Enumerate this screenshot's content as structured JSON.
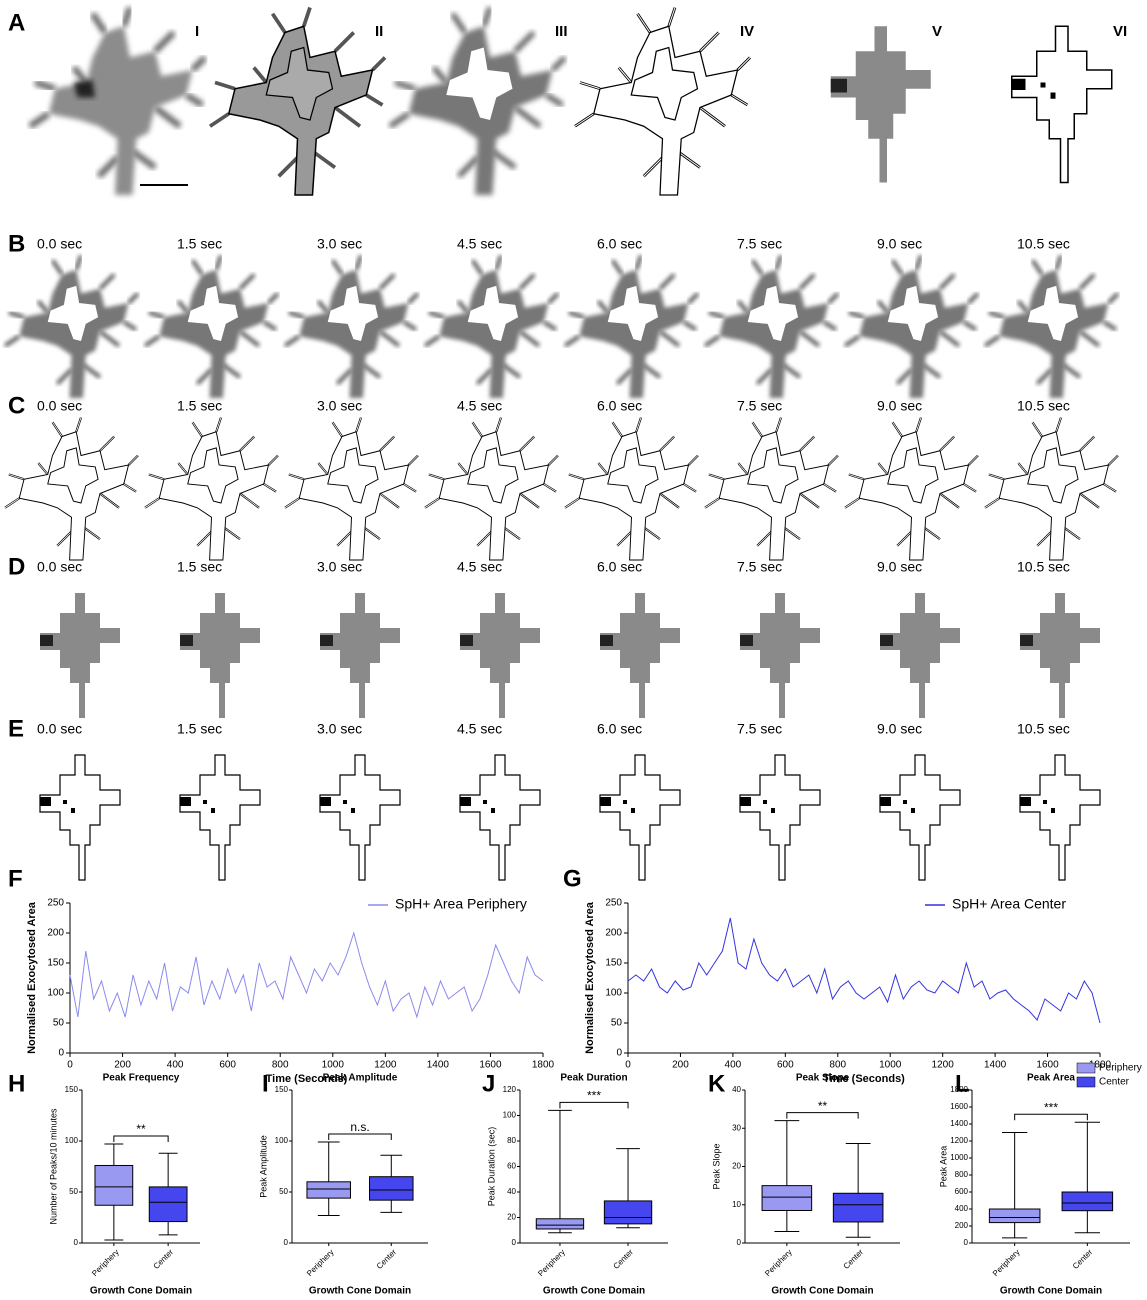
{
  "image_rows": {
    "A": {
      "label": "A",
      "steps": [
        "I",
        "II",
        "III",
        "IV",
        "V",
        "VI"
      ]
    },
    "rows": [
      "B",
      "C",
      "D",
      "E"
    ],
    "time_labels": [
      "0.0 sec",
      "1.5 sec",
      "3.0 sec",
      "4.5 sec",
      "6.0 sec",
      "7.5 sec",
      "9.0 sec",
      "10.5 sec"
    ]
  },
  "chart_data": [
    {
      "type": "line",
      "label": "F",
      "xlabel": "Time (Seconds)",
      "ylabel": "Normalised Exocytosed Area",
      "x": [
        0,
        30,
        60,
        90,
        120,
        150,
        180,
        210,
        240,
        270,
        300,
        330,
        360,
        390,
        420,
        450,
        480,
        510,
        540,
        570,
        600,
        630,
        660,
        690,
        720,
        750,
        780,
        810,
        840,
        870,
        900,
        930,
        960,
        990,
        1020,
        1050,
        1080,
        1110,
        1140,
        1170,
        1200,
        1230,
        1260,
        1290,
        1320,
        1350,
        1380,
        1410,
        1440,
        1470,
        1500,
        1530,
        1560,
        1590,
        1620,
        1650,
        1680,
        1710,
        1740,
        1770,
        1800
      ],
      "series": [
        {
          "name": "SpH+ Area Periphery",
          "color": "#8a8af0",
          "values": [
            130,
            60,
            170,
            90,
            120,
            70,
            100,
            60,
            130,
            80,
            120,
            90,
            150,
            70,
            110,
            100,
            160,
            80,
            120,
            90,
            140,
            100,
            130,
            70,
            150,
            110,
            120,
            90,
            160,
            130,
            100,
            140,
            120,
            150,
            130,
            160,
            200,
            150,
            110,
            80,
            120,
            70,
            90,
            100,
            60,
            110,
            80,
            120,
            90,
            100,
            110,
            70,
            90,
            130,
            180,
            150,
            120,
            100,
            160,
            130,
            120
          ]
        }
      ],
      "xlim": [
        0,
        1800
      ],
      "xticks": [
        0,
        200,
        400,
        600,
        800,
        1000,
        1200,
        1400,
        1600,
        1800
      ],
      "ylim": [
        0,
        250
      ],
      "yticks": [
        0,
        50,
        100,
        150,
        200,
        250
      ]
    },
    {
      "type": "line",
      "label": "G",
      "xlabel": "Time (Seconds)",
      "ylabel": "Normalised Exocytosed Area",
      "x": [
        0,
        30,
        60,
        90,
        120,
        150,
        180,
        210,
        240,
        270,
        300,
        330,
        360,
        390,
        420,
        450,
        480,
        510,
        540,
        570,
        600,
        630,
        660,
        690,
        720,
        750,
        780,
        810,
        840,
        870,
        900,
        930,
        960,
        990,
        1020,
        1050,
        1080,
        1110,
        1140,
        1170,
        1200,
        1230,
        1260,
        1290,
        1320,
        1350,
        1380,
        1410,
        1440,
        1470,
        1500,
        1530,
        1560,
        1590,
        1620,
        1650,
        1680,
        1710,
        1740,
        1770,
        1800
      ],
      "series": [
        {
          "name": "SpH+ Area Center",
          "color": "#3434e0",
          "values": [
            120,
            130,
            120,
            140,
            110,
            100,
            120,
            105,
            110,
            150,
            130,
            150,
            170,
            225,
            150,
            140,
            190,
            150,
            130,
            120,
            140,
            110,
            120,
            130,
            100,
            140,
            90,
            110,
            120,
            100,
            90,
            100,
            110,
            85,
            130,
            90,
            110,
            120,
            105,
            100,
            120,
            110,
            100,
            150,
            110,
            120,
            90,
            100,
            105,
            90,
            80,
            70,
            55,
            90,
            80,
            70,
            100,
            90,
            120,
            100,
            50
          ]
        }
      ],
      "xlim": [
        0,
        1800
      ],
      "xticks": [
        0,
        200,
        400,
        600,
        800,
        1000,
        1200,
        1400,
        1600,
        1800
      ],
      "ylim": [
        0,
        250
      ],
      "yticks": [
        0,
        50,
        100,
        150,
        200,
        250
      ]
    },
    {
      "type": "box",
      "label": "H",
      "title": "Peak Frequency",
      "ylabel": "Number of Peaks/10 minutes",
      "xlabel": "Growth Cone Domain",
      "categories": [
        "Periphery",
        "Center"
      ],
      "significance": "**",
      "boxes": [
        {
          "min": 3,
          "q1": 37,
          "median": 55,
          "q3": 76,
          "max": 97,
          "color": "#9999f2"
        },
        {
          "min": 8,
          "q1": 21,
          "median": 40,
          "q3": 55,
          "max": 88,
          "color": "#4646ee"
        }
      ],
      "ylim": [
        0,
        150
      ],
      "yticks": [
        0,
        50,
        100,
        150
      ]
    },
    {
      "type": "box",
      "label": "I",
      "title": "Peak Amplitude",
      "ylabel": "Peak Amplitude",
      "xlabel": "Growth Cone Domain",
      "categories": [
        "Periphery",
        "Center"
      ],
      "significance": "n.s.",
      "boxes": [
        {
          "min": 27,
          "q1": 44,
          "median": 53,
          "q3": 60,
          "max": 99,
          "color": "#9999f2"
        },
        {
          "min": 30,
          "q1": 42,
          "median": 52,
          "q3": 65,
          "max": 86,
          "color": "#4646ee"
        }
      ],
      "ylim": [
        0,
        150
      ],
      "yticks": [
        0,
        50,
        100,
        150
      ]
    },
    {
      "type": "box",
      "label": "J",
      "title": "Peak Duration",
      "ylabel": "Peak Duration (sec)",
      "xlabel": "Growth Cone Domain",
      "categories": [
        "Periphery",
        "Center"
      ],
      "significance": "***",
      "boxes": [
        {
          "min": 8,
          "q1": 11,
          "median": 14,
          "q3": 19,
          "max": 104,
          "color": "#9999f2"
        },
        {
          "min": 12,
          "q1": 15,
          "median": 20,
          "q3": 33,
          "max": 74,
          "color": "#4646ee"
        }
      ],
      "ylim": [
        0,
        120
      ],
      "yticks": [
        0,
        20,
        40,
        60,
        80,
        100,
        120
      ]
    },
    {
      "type": "box",
      "label": "K",
      "title": "Peak Slope",
      "ylabel": "Peak Slope",
      "xlabel": "Growth Cone Domain",
      "categories": [
        "Periphery",
        "Center"
      ],
      "significance": "**",
      "boxes": [
        {
          "min": 3,
          "q1": 8.5,
          "median": 12,
          "q3": 15,
          "max": 32,
          "color": "#9999f2"
        },
        {
          "min": 1.5,
          "q1": 5.5,
          "median": 10,
          "q3": 13,
          "max": 26,
          "color": "#4646ee"
        }
      ],
      "ylim": [
        0,
        40
      ],
      "yticks": [
        0,
        10,
        20,
        30,
        40
      ]
    },
    {
      "type": "box",
      "label": "L",
      "title": "Peak Area",
      "ylabel": "Peak Area",
      "xlabel": "Growth Cone Domain",
      "categories": [
        "Periphery",
        "Center"
      ],
      "significance": "***",
      "boxes": [
        {
          "min": 60,
          "q1": 240,
          "median": 300,
          "q3": 400,
          "max": 1300,
          "color": "#9999f2"
        },
        {
          "min": 120,
          "q1": 380,
          "median": 470,
          "q3": 600,
          "max": 1420,
          "color": "#4646ee"
        }
      ],
      "legend": [
        {
          "name": "Periphery",
          "color": "#9999f2"
        },
        {
          "name": "Center",
          "color": "#4646ee"
        }
      ],
      "ylim": [
        0,
        1800
      ],
      "yticks": [
        0,
        200,
        400,
        600,
        800,
        1000,
        1200,
        1400,
        1600,
        1800
      ]
    }
  ]
}
